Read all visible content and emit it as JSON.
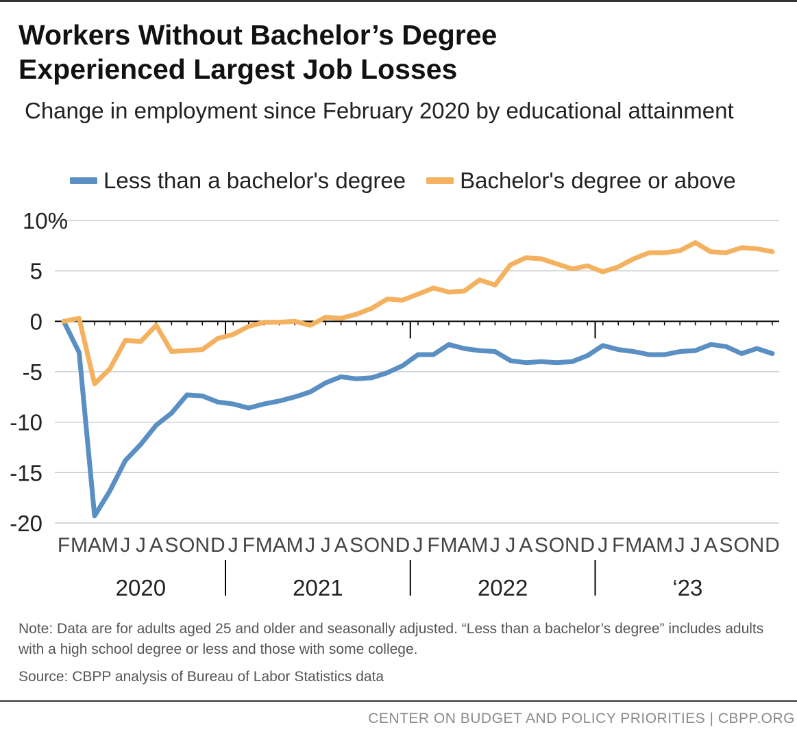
{
  "header": {
    "title_line1": "Workers Without Bachelor’s Degree",
    "title_line2": "Experienced Largest Job Losses",
    "subtitle": "Change in employment since February 2020 by educational attainment"
  },
  "colors": {
    "less_than_bachelors": "#5a8fc3",
    "bachelors_or_above": "#f4b260",
    "gridline": "#bdbdbd",
    "axis": "#000000"
  },
  "chart_data": {
    "type": "line",
    "ylim": [
      -20,
      10
    ],
    "yticks": [
      10,
      5,
      0,
      -5,
      -10,
      -15,
      -20
    ],
    "ytick_labels": [
      "10%",
      "5",
      "0",
      "-5",
      "-10",
      "-15",
      "-20"
    ],
    "x": [
      "2020-02",
      "2020-03",
      "2020-04",
      "2020-05",
      "2020-06",
      "2020-07",
      "2020-08",
      "2020-09",
      "2020-10",
      "2020-11",
      "2020-12",
      "2021-01",
      "2021-02",
      "2021-03",
      "2021-04",
      "2021-05",
      "2021-06",
      "2021-07",
      "2021-08",
      "2021-09",
      "2021-10",
      "2021-11",
      "2021-12",
      "2022-01",
      "2022-02",
      "2022-03",
      "2022-04",
      "2022-05",
      "2022-06",
      "2022-07",
      "2022-08",
      "2022-09",
      "2022-10",
      "2022-11",
      "2022-12",
      "2023-01",
      "2023-02",
      "2023-03",
      "2023-04",
      "2023-05",
      "2023-06",
      "2023-07",
      "2023-08",
      "2023-09",
      "2023-10",
      "2023-11",
      "2023-12"
    ],
    "month_labels": [
      "F",
      "M",
      "A",
      "M",
      "J",
      "J",
      "A",
      "S",
      "O",
      "N",
      "D",
      "J",
      "F",
      "M",
      "A",
      "M",
      "J",
      "J",
      "A",
      "S",
      "O",
      "N",
      "D",
      "J",
      "F",
      "M",
      "A",
      "M",
      "J",
      "J",
      "A",
      "S",
      "O",
      "N",
      "D",
      "J",
      "F",
      "M",
      "A",
      "M",
      "J",
      "J",
      "A",
      "S",
      "O",
      "N",
      "D"
    ],
    "year_labels": [
      {
        "label": "2020",
        "start": 0,
        "end": 10
      },
      {
        "label": "2021",
        "start": 11,
        "end": 22
      },
      {
        "label": "2022",
        "start": 23,
        "end": 34
      },
      {
        "label": "‘23",
        "start": 35,
        "end": 46
      }
    ],
    "legend_position": "top",
    "series": [
      {
        "name": "Less than a bachelor's degree",
        "color": "#5a8fc3",
        "values": [
          0,
          -3.1,
          -19.3,
          -16.8,
          -13.8,
          -12.2,
          -10.3,
          -9.1,
          -7.3,
          -7.4,
          -8.0,
          -8.2,
          -8.6,
          -8.2,
          -7.9,
          -7.5,
          -7.0,
          -6.1,
          -5.5,
          -5.7,
          -5.6,
          -5.1,
          -4.4,
          -3.3,
          -3.3,
          -2.3,
          -2.7,
          -2.9,
          -3.0,
          -3.9,
          -4.1,
          -4.0,
          -4.1,
          -4.0,
          -3.4,
          -2.4,
          -2.8,
          -3.0,
          -3.3,
          -3.3,
          -3.0,
          -2.9,
          -2.3,
          -2.5,
          -3.2,
          -2.7,
          -3.2
        ]
      },
      {
        "name": "Bachelor's degree or above",
        "color": "#f4b260",
        "values": [
          0,
          0.3,
          -6.2,
          -4.7,
          -1.9,
          -2.0,
          -0.4,
          -3.0,
          -2.9,
          -2.8,
          -1.7,
          -1.3,
          -0.5,
          -0.1,
          -0.1,
          0.0,
          -0.4,
          0.4,
          0.3,
          0.7,
          1.3,
          2.2,
          2.1,
          2.7,
          3.3,
          2.9,
          3.0,
          4.1,
          3.6,
          5.6,
          6.3,
          6.2,
          5.7,
          5.2,
          5.5,
          4.9,
          5.4,
          6.2,
          6.8,
          6.8,
          7.0,
          7.8,
          6.9,
          6.8,
          7.3,
          7.2,
          6.9
        ]
      }
    ]
  },
  "notes": {
    "note": "Note: Data are for adults aged 25 and older and seasonally adjusted. “Less than a bachelor’s degree” includes adults with a high school degree or less and those with some college.",
    "source": "Source: CBPP analysis of Bureau of Labor Statistics data"
  },
  "footer": {
    "org": "CENTER ON BUDGET AND POLICY PRIORITIES | CBPP.ORG"
  }
}
